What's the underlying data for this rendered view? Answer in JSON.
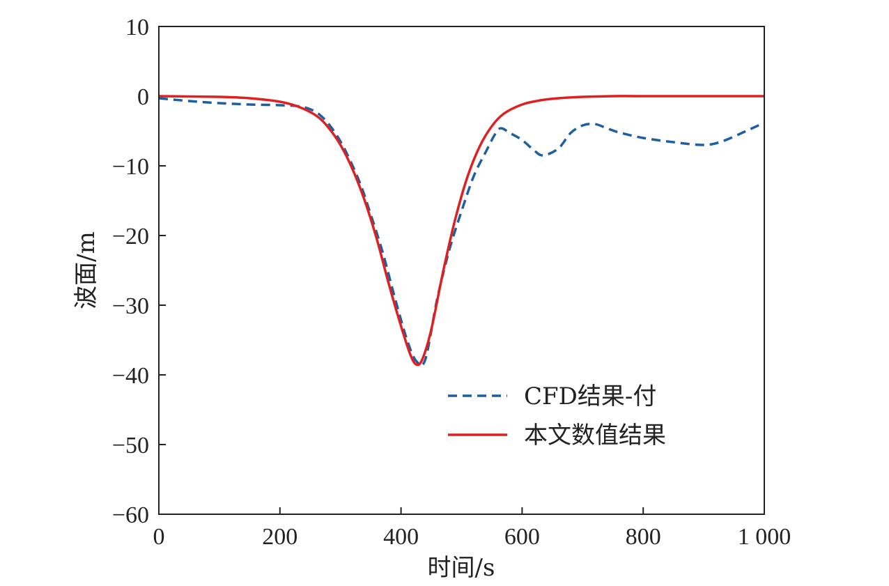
{
  "chart_data": {
    "type": "line",
    "title": "",
    "xlabel": "时间/s",
    "ylabel": "波面/m",
    "xlim": [
      0,
      1000
    ],
    "ylim": [
      -60,
      10
    ],
    "x_ticks": [
      0,
      200,
      400,
      600,
      800,
      1000
    ],
    "x_tick_labels": [
      "0",
      "200",
      "400",
      "600",
      "800",
      "1 000"
    ],
    "y_ticks": [
      10,
      0,
      -10,
      -20,
      -30,
      -40,
      -50,
      -60
    ],
    "y_tick_labels": [
      "10",
      "0",
      "−10",
      "−20",
      "−30",
      "−40",
      "−50",
      "−60"
    ],
    "grid": false,
    "legend_position": "lower-right",
    "series": [
      {
        "name": "CFD结果-付",
        "style": "dashed",
        "color": "#1f5fa0",
        "points": [
          [
            0,
            -0.3
          ],
          [
            50,
            -0.7
          ],
          [
            100,
            -1.0
          ],
          [
            150,
            -1.2
          ],
          [
            200,
            -1.3
          ],
          [
            240,
            -1.6
          ],
          [
            270,
            -3.0
          ],
          [
            300,
            -6.5
          ],
          [
            330,
            -12.0
          ],
          [
            350,
            -17.0
          ],
          [
            370,
            -22.5
          ],
          [
            390,
            -29.0
          ],
          [
            410,
            -35.0
          ],
          [
            425,
            -38.0
          ],
          [
            440,
            -37.8
          ],
          [
            460,
            -29.0
          ],
          [
            480,
            -22.0
          ],
          [
            500,
            -16.5
          ],
          [
            520,
            -11.5
          ],
          [
            540,
            -8.0
          ],
          [
            555,
            -5.5
          ],
          [
            565,
            -4.6
          ],
          [
            580,
            -5.3
          ],
          [
            600,
            -6.3
          ],
          [
            620,
            -7.8
          ],
          [
            635,
            -8.5
          ],
          [
            660,
            -7.5
          ],
          [
            680,
            -5.3
          ],
          [
            700,
            -4.2
          ],
          [
            720,
            -4.0
          ],
          [
            740,
            -4.6
          ],
          [
            760,
            -5.2
          ],
          [
            800,
            -6.0
          ],
          [
            850,
            -6.6
          ],
          [
            900,
            -7.0
          ],
          [
            930,
            -6.5
          ],
          [
            970,
            -5.0
          ],
          [
            1000,
            -3.8
          ]
        ]
      },
      {
        "name": "本文数值结果",
        "style": "solid",
        "color": "#e02020",
        "points": [
          [
            0,
            0
          ],
          [
            100,
            -0.1
          ],
          [
            150,
            -0.3
          ],
          [
            200,
            -0.8
          ],
          [
            230,
            -1.5
          ],
          [
            260,
            -2.8
          ],
          [
            280,
            -4.5
          ],
          [
            300,
            -7.0
          ],
          [
            320,
            -10.5
          ],
          [
            340,
            -15.0
          ],
          [
            360,
            -20.5
          ],
          [
            380,
            -27.0
          ],
          [
            400,
            -33.0
          ],
          [
            415,
            -37.0
          ],
          [
            425,
            -38.5
          ],
          [
            435,
            -37.8
          ],
          [
            450,
            -33.5
          ],
          [
            470,
            -25.0
          ],
          [
            490,
            -17.5
          ],
          [
            510,
            -11.5
          ],
          [
            530,
            -7.2
          ],
          [
            550,
            -4.3
          ],
          [
            570,
            -2.5
          ],
          [
            600,
            -1.2
          ],
          [
            630,
            -0.6
          ],
          [
            660,
            -0.3
          ],
          [
            700,
            -0.1
          ],
          [
            750,
            0
          ],
          [
            800,
            0
          ],
          [
            1000,
            0
          ]
        ]
      }
    ]
  }
}
